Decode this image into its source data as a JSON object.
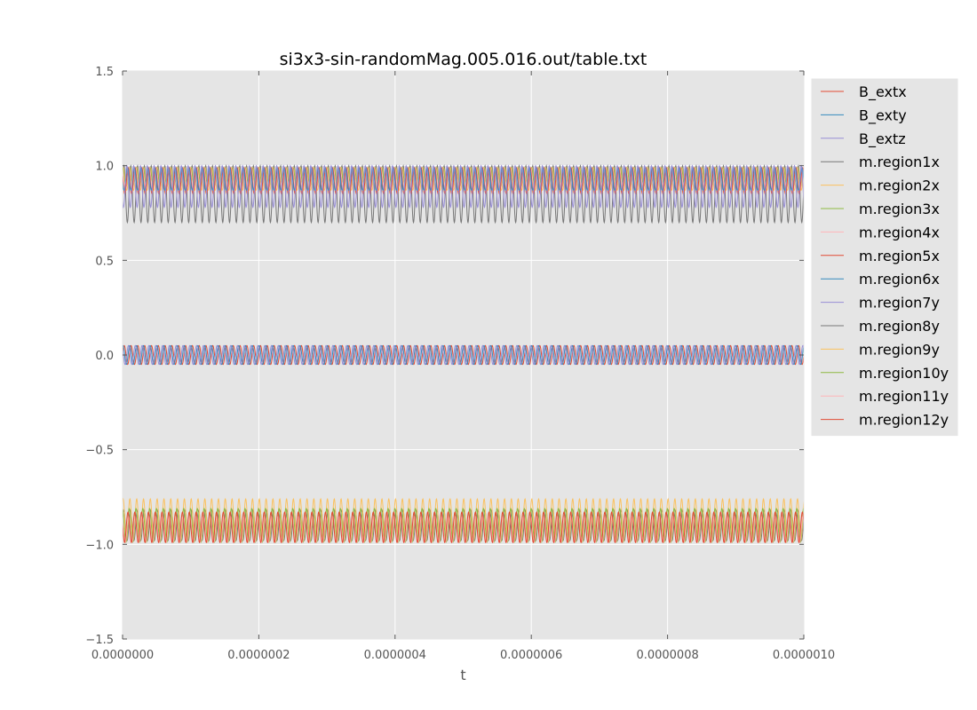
{
  "chart_data": {
    "type": "line",
    "title": "si3x3-sin-randomMag.005.016.out/table.txt",
    "xlabel": "t",
    "ylabel": "",
    "xlim": [
      0.0,
      1e-06
    ],
    "ylim": [
      -1.5,
      1.5
    ],
    "x_ticks": [
      0.0,
      2e-07,
      4e-07,
      6e-07,
      8e-07,
      1e-06
    ],
    "x_tick_labels": [
      "0.0000000",
      "0.0000002",
      "0.0000004",
      "0.0000006",
      "0.0000008",
      "0.0000010"
    ],
    "y_ticks": [
      -1.5,
      -1.0,
      -0.5,
      0.0,
      0.5,
      1.0,
      1.5
    ],
    "y_tick_labels": [
      "−1.5",
      "−1.0",
      "−0.5",
      "0.0",
      "0.5",
      "1.0",
      "1.5"
    ],
    "grid": true,
    "legend_position": "outside-right",
    "background": "#e5e5e5",
    "cycles": 100,
    "series": [
      {
        "name": "B_extx",
        "color": "#e24a33",
        "offset": 0.0,
        "amplitude": 0.05,
        "phase": 0.0
      },
      {
        "name": "B_exty",
        "color": "#348abd",
        "offset": 0.0,
        "amplitude": 0.05,
        "phase": 1.2
      },
      {
        "name": "B_extz",
        "color": "#988ed5",
        "offset": 0.0,
        "amplitude": 0.05,
        "phase": 2.4
      },
      {
        "name": "m.region1x",
        "color": "#777777",
        "offset": 0.85,
        "amplitude": 0.15,
        "phase": 0.3
      },
      {
        "name": "m.region2x",
        "color": "#fbc15e",
        "offset": 0.93,
        "amplitude": 0.06,
        "phase": 0.9
      },
      {
        "name": "m.region3x",
        "color": "#8eba42",
        "offset": 0.94,
        "amplitude": 0.05,
        "phase": 1.5
      },
      {
        "name": "m.region4x",
        "color": "#ffb5b8",
        "offset": 0.93,
        "amplitude": 0.06,
        "phase": 2.1
      },
      {
        "name": "m.region5x",
        "color": "#e24a33",
        "offset": 0.92,
        "amplitude": 0.07,
        "phase": 2.7
      },
      {
        "name": "m.region6x",
        "color": "#348abd",
        "offset": 0.93,
        "amplitude": 0.06,
        "phase": 3.3
      },
      {
        "name": "m.region7y",
        "color": "#988ed5",
        "offset": 0.89,
        "amplitude": 0.11,
        "phase": 3.9
      },
      {
        "name": "m.region8y",
        "color": "#777777",
        "offset": -0.9,
        "amplitude": 0.08,
        "phase": 0.5
      },
      {
        "name": "m.region9y",
        "color": "#fbc15e",
        "offset": -0.87,
        "amplitude": 0.11,
        "phase": 1.1
      },
      {
        "name": "m.region10y",
        "color": "#8eba42",
        "offset": -0.9,
        "amplitude": 0.09,
        "phase": 1.7
      },
      {
        "name": "m.region11y",
        "color": "#ffb5b8",
        "offset": -0.92,
        "amplitude": 0.07,
        "phase": 2.3
      },
      {
        "name": "m.region12y",
        "color": "#e24a33",
        "offset": -0.91,
        "amplitude": 0.08,
        "phase": 2.9
      }
    ]
  }
}
